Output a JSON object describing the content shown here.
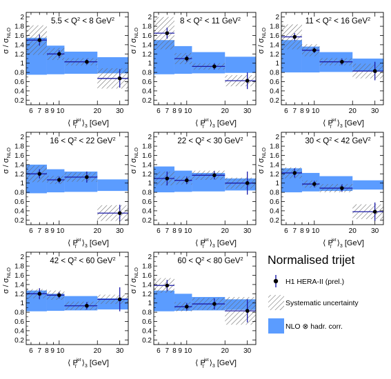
{
  "colors": {
    "nlo_band": "#5b9cff",
    "syst_hatch": "#666666",
    "data_point": "#000000",
    "error_bar": "#1a1aa8",
    "axis": "#000000"
  },
  "axis_text": {
    "ylabel_main": "σ / σ",
    "ylabel_sub": "NLO",
    "xlabel_pre": "⟨ P",
    "xlabel_sup": "jet",
    "xlabel_subT": "T",
    "xlabel_post": "⟩",
    "xlabel_sub3": "3",
    "xlabel_unit": "[GeV]"
  },
  "legend": {
    "title": "Normalised trijet",
    "entries": [
      {
        "label": "H1 HERA-II (prel.)",
        "icon": "data-point-icon"
      },
      {
        "label": "Systematic uncertainty",
        "icon": "hatch-icon"
      },
      {
        "label": "NLO ⊗ hadr. corr.",
        "icon": "band-icon"
      }
    ]
  },
  "chart_data": [
    {
      "type": "scatter",
      "title": "5.5 < Q² < 8 GeV²",
      "xlabel": "⟨P_T^jet⟩_3 [GeV]",
      "ylabel": "σ / σ_NLO",
      "xscale": "log",
      "xlim": [
        5.5,
        35
      ],
      "ylim": [
        0.1,
        2.1
      ],
      "xticks": [
        6,
        7,
        8,
        9,
        10,
        20,
        30
      ],
      "xtick_labels": [
        "6",
        "7",
        "8",
        "9",
        "10",
        "20",
        "30"
      ],
      "yticks": [
        0.2,
        0.4,
        0.6,
        0.8,
        1,
        1.2,
        1.4,
        1.6,
        1.8,
        2
      ],
      "bins": [
        {
          "x_low": 5.5,
          "x_high": 8,
          "x": 7.0,
          "y": 1.5,
          "stat": 0.12,
          "syst": [
            1.18,
            1.82
          ],
          "nlo": [
            0.75,
            1.55
          ]
        },
        {
          "x_low": 8,
          "x_high": 11,
          "x": 10.0,
          "y": 1.2,
          "stat": 0.08,
          "syst": [
            1.07,
            1.33
          ],
          "nlo": [
            0.76,
            1.38
          ]
        },
        {
          "x_low": 11,
          "x_high": 20,
          "x": 16.5,
          "y": 1.03,
          "stat": 0.06,
          "syst": [
            0.95,
            1.11
          ],
          "nlo": [
            0.77,
            1.25
          ]
        },
        {
          "x_low": 20,
          "x_high": 35,
          "x": 30.0,
          "y": 0.67,
          "stat": 0.2,
          "syst": [
            0.45,
            0.89
          ],
          "nlo": [
            0.78,
            1.13
          ]
        }
      ]
    },
    {
      "type": "scatter",
      "title": "8 < Q² < 11 GeV²",
      "xlabel": "⟨P_T^jet⟩_3 [GeV]",
      "ylabel": "σ / σ_NLO",
      "xscale": "log",
      "xlim": [
        5.5,
        35
      ],
      "ylim": [
        0.1,
        2.1
      ],
      "xticks": [
        6,
        7,
        8,
        9,
        10,
        20,
        30
      ],
      "xtick_labels": [
        "6",
        "7",
        "8",
        "9",
        "10",
        "20",
        "30"
      ],
      "yticks": [
        0.2,
        0.4,
        0.6,
        0.8,
        1,
        1.2,
        1.4,
        1.6,
        1.8,
        2
      ],
      "bins": [
        {
          "x_low": 5.5,
          "x_high": 8,
          "x": 7.0,
          "y": 1.65,
          "stat": 0.12,
          "syst": [
            1.3,
            2.0
          ],
          "nlo": [
            0.76,
            1.5
          ]
        },
        {
          "x_low": 8,
          "x_high": 11,
          "x": 10.0,
          "y": 1.1,
          "stat": 0.07,
          "syst": [
            0.98,
            1.22
          ],
          "nlo": [
            0.77,
            1.37
          ]
        },
        {
          "x_low": 11,
          "x_high": 20,
          "x": 16.5,
          "y": 0.93,
          "stat": 0.07,
          "syst": [
            0.86,
            1.0
          ],
          "nlo": [
            0.78,
            1.24
          ]
        },
        {
          "x_low": 20,
          "x_high": 35,
          "x": 30.0,
          "y": 0.62,
          "stat": 0.18,
          "syst": [
            0.5,
            0.74
          ],
          "nlo": [
            0.79,
            1.14
          ]
        }
      ]
    },
    {
      "type": "scatter",
      "title": "11 < Q² < 16 GeV²",
      "xlabel": "⟨P_T^jet⟩_3 [GeV]",
      "ylabel": "σ / σ_NLO",
      "xscale": "log",
      "xlim": [
        5.5,
        35
      ],
      "ylim": [
        0.1,
        2.1
      ],
      "xticks": [
        6,
        7,
        8,
        9,
        10,
        20,
        30
      ],
      "xtick_labels": [
        "6",
        "7",
        "8",
        "9",
        "10",
        "20",
        "30"
      ],
      "yticks": [
        0.2,
        0.4,
        0.6,
        0.8,
        1,
        1.2,
        1.4,
        1.6,
        1.8,
        2
      ],
      "bins": [
        {
          "x_low": 5.5,
          "x_high": 8,
          "x": 7.0,
          "y": 1.57,
          "stat": 0.08,
          "syst": [
            1.3,
            1.84
          ],
          "nlo": [
            0.8,
            1.5
          ]
        },
        {
          "x_low": 8,
          "x_high": 11,
          "x": 10.0,
          "y": 1.28,
          "stat": 0.06,
          "syst": [
            1.15,
            1.41
          ],
          "nlo": [
            0.8,
            1.36
          ]
        },
        {
          "x_low": 11,
          "x_high": 20,
          "x": 16.5,
          "y": 1.03,
          "stat": 0.07,
          "syst": [
            0.95,
            1.11
          ],
          "nlo": [
            0.81,
            1.24
          ]
        },
        {
          "x_low": 20,
          "x_high": 35,
          "x": 30.0,
          "y": 0.83,
          "stat": 0.2,
          "syst": [
            0.67,
            0.99
          ],
          "nlo": [
            0.82,
            1.1
          ]
        }
      ]
    },
    {
      "type": "scatter",
      "title": "16 < Q² < 22 GeV²",
      "xlabel": "⟨P_T^jet⟩_3 [GeV]",
      "ylabel": "σ / σ_NLO",
      "xscale": "log",
      "xlim": [
        5.5,
        35
      ],
      "ylim": [
        0.1,
        2.1
      ],
      "xticks": [
        6,
        7,
        8,
        9,
        10,
        20,
        30
      ],
      "xtick_labels": [
        "6",
        "7",
        "8",
        "9",
        "10",
        "20",
        "30"
      ],
      "yticks": [
        0.2,
        0.4,
        0.6,
        0.8,
        1,
        1.2,
        1.4,
        1.6,
        1.8,
        2
      ],
      "bins": [
        {
          "x_low": 5.5,
          "x_high": 8,
          "x": 7.0,
          "y": 1.2,
          "stat": 0.1,
          "syst": [
            1.02,
            1.38
          ],
          "nlo": [
            0.78,
            1.4
          ]
        },
        {
          "x_low": 8,
          "x_high": 11,
          "x": 10.0,
          "y": 1.07,
          "stat": 0.07,
          "syst": [
            0.98,
            1.16
          ],
          "nlo": [
            0.8,
            1.3
          ]
        },
        {
          "x_low": 11,
          "x_high": 20,
          "x": 16.5,
          "y": 1.13,
          "stat": 0.12,
          "syst": [
            1.03,
            1.23
          ],
          "nlo": [
            0.81,
            1.25
          ]
        },
        {
          "x_low": 20,
          "x_high": 35,
          "x": 30.0,
          "y": 0.35,
          "stat": 0.18,
          "syst": [
            0.18,
            0.52
          ],
          "nlo": [
            0.83,
            1.08
          ]
        }
      ]
    },
    {
      "type": "scatter",
      "title": "22 < Q² < 30 GeV²",
      "xlabel": "⟨P_T^jet⟩_3 [GeV]",
      "ylabel": "σ / σ_NLO",
      "xscale": "log",
      "xlim": [
        5.5,
        35
      ],
      "ylim": [
        0.1,
        2.1
      ],
      "xticks": [
        6,
        7,
        8,
        9,
        10,
        20,
        30
      ],
      "xtick_labels": [
        "6",
        "7",
        "8",
        "9",
        "10",
        "20",
        "30"
      ],
      "yticks": [
        0.2,
        0.4,
        0.6,
        0.8,
        1,
        1.2,
        1.4,
        1.6,
        1.8,
        2
      ],
      "bins": [
        {
          "x_low": 5.5,
          "x_high": 8,
          "x": 7.0,
          "y": 1.1,
          "stat": 0.15,
          "syst": [
            0.95,
            1.25
          ],
          "nlo": [
            0.8,
            1.36
          ]
        },
        {
          "x_low": 8,
          "x_high": 11,
          "x": 10.0,
          "y": 1.06,
          "stat": 0.08,
          "syst": [
            0.97,
            1.15
          ],
          "nlo": [
            0.81,
            1.27
          ]
        },
        {
          "x_low": 11,
          "x_high": 20,
          "x": 16.5,
          "y": 1.17,
          "stat": 0.09,
          "syst": [
            1.07,
            1.27
          ],
          "nlo": [
            0.82,
            1.22
          ]
        },
        {
          "x_low": 20,
          "x_high": 35,
          "x": 30.0,
          "y": 1.0,
          "stat": 0.25,
          "syst": [
            0.88,
            1.12
          ],
          "nlo": [
            0.84,
            1.1
          ]
        }
      ]
    },
    {
      "type": "scatter",
      "title": "30 < Q² < 42 GeV²",
      "xlabel": "⟨P_T^jet⟩_3 [GeV]",
      "ylabel": "σ / σ_NLO",
      "xscale": "log",
      "xlim": [
        5.5,
        35
      ],
      "ylim": [
        0.1,
        2.1
      ],
      "xticks": [
        6,
        7,
        8,
        9,
        10,
        20,
        30
      ],
      "xtick_labels": [
        "6",
        "7",
        "8",
        "9",
        "10",
        "20",
        "30"
      ],
      "yticks": [
        0.2,
        0.4,
        0.6,
        0.8,
        1,
        1.2,
        1.4,
        1.6,
        1.8,
        2
      ],
      "bins": [
        {
          "x_low": 5.5,
          "x_high": 8,
          "x": 7.0,
          "y": 1.22,
          "stat": 0.1,
          "syst": [
            1.1,
            1.34
          ],
          "nlo": [
            0.8,
            1.32
          ]
        },
        {
          "x_low": 8,
          "x_high": 11,
          "x": 10.0,
          "y": 0.98,
          "stat": 0.07,
          "syst": [
            0.9,
            1.06
          ],
          "nlo": [
            0.82,
            1.22
          ]
        },
        {
          "x_low": 11,
          "x_high": 20,
          "x": 16.5,
          "y": 0.89,
          "stat": 0.08,
          "syst": [
            0.8,
            0.98
          ],
          "nlo": [
            0.83,
            1.15
          ]
        },
        {
          "x_low": 20,
          "x_high": 35,
          "x": 30.0,
          "y": 0.38,
          "stat": 0.2,
          "syst": [
            0.22,
            0.54
          ],
          "nlo": [
            0.86,
            1.06
          ]
        }
      ]
    },
    {
      "type": "scatter",
      "title": "42 < Q² < 60 GeV²",
      "xlabel": "⟨P_T^jet⟩_3 [GeV]",
      "ylabel": "σ / σ_NLO",
      "xscale": "log",
      "xlim": [
        5.5,
        35
      ],
      "ylim": [
        0.1,
        2.1
      ],
      "xticks": [
        6,
        7,
        8,
        9,
        10,
        20,
        30
      ],
      "xtick_labels": [
        "6",
        "7",
        "8",
        "9",
        "10",
        "20",
        "30"
      ],
      "yticks": [
        0.2,
        0.4,
        0.6,
        0.8,
        1,
        1.2,
        1.4,
        1.6,
        1.8,
        2
      ],
      "bins": [
        {
          "x_low": 5.5,
          "x_high": 8,
          "x": 7.0,
          "y": 1.2,
          "stat": 0.12,
          "syst": [
            1.1,
            1.3
          ],
          "nlo": [
            0.82,
            1.27
          ]
        },
        {
          "x_low": 8,
          "x_high": 11,
          "x": 10.0,
          "y": 1.17,
          "stat": 0.07,
          "syst": [
            1.07,
            1.27
          ],
          "nlo": [
            0.83,
            1.2
          ]
        },
        {
          "x_low": 11,
          "x_high": 20,
          "x": 16.5,
          "y": 0.94,
          "stat": 0.08,
          "syst": [
            0.85,
            1.03
          ],
          "nlo": [
            0.84,
            1.15
          ]
        },
        {
          "x_low": 20,
          "x_high": 35,
          "x": 30.0,
          "y": 1.08,
          "stat": 0.26,
          "syst": [
            0.98,
            1.18
          ],
          "nlo": [
            0.86,
            1.1
          ]
        }
      ]
    },
    {
      "type": "scatter",
      "title": "60 < Q² < 80 GeV²",
      "xlabel": "⟨P_T^jet⟩_3 [GeV]",
      "ylabel": "σ / σ_NLO",
      "xscale": "log",
      "xlim": [
        5.5,
        35
      ],
      "ylim": [
        0.1,
        2.1
      ],
      "xticks": [
        6,
        7,
        8,
        9,
        10,
        20,
        30
      ],
      "xtick_labels": [
        "6",
        "7",
        "8",
        "9",
        "10",
        "20",
        "30"
      ],
      "yticks": [
        0.2,
        0.4,
        0.6,
        0.8,
        1,
        1.2,
        1.4,
        1.6,
        1.8,
        2
      ],
      "bins": [
        {
          "x_low": 5.5,
          "x_high": 8,
          "x": 7.0,
          "y": 1.38,
          "stat": 0.12,
          "syst": [
            1.22,
            1.54
          ],
          "nlo": [
            0.82,
            1.27
          ]
        },
        {
          "x_low": 8,
          "x_high": 11,
          "x": 10.0,
          "y": 0.92,
          "stat": 0.08,
          "syst": [
            0.82,
            1.02
          ],
          "nlo": [
            0.83,
            1.2
          ]
        },
        {
          "x_low": 11,
          "x_high": 20,
          "x": 16.5,
          "y": 0.98,
          "stat": 0.12,
          "syst": [
            0.85,
            1.11
          ],
          "nlo": [
            0.84,
            1.13
          ]
        },
        {
          "x_low": 20,
          "x_high": 35,
          "x": 30.0,
          "y": 0.83,
          "stat": 0.25,
          "syst": [
            0.53,
            1.13
          ],
          "nlo": [
            0.85,
            1.08
          ]
        }
      ]
    }
  ]
}
